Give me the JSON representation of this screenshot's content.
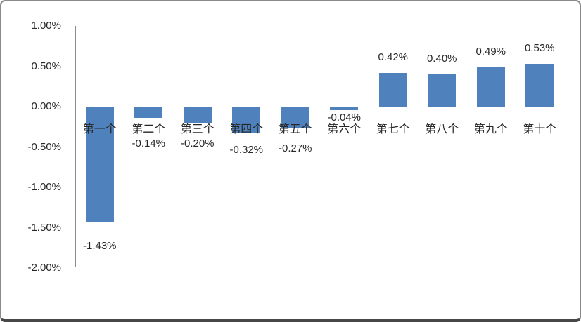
{
  "chart_data": {
    "type": "bar",
    "title": "",
    "xlabel": "",
    "ylabel": "",
    "categories": [
      "第一个",
      "第二个",
      "第三个",
      "第四个",
      "第五个",
      "第六个",
      "第七个",
      "第八个",
      "第九个",
      "第十个"
    ],
    "values": [
      -1.43,
      -0.14,
      -0.2,
      -0.32,
      -0.27,
      -0.04,
      0.42,
      0.4,
      0.49,
      0.53
    ],
    "data_labels": [
      "-1.43%",
      "-0.14%",
      "-0.20%",
      "-0.32%",
      "-0.27%",
      "-0.04%",
      "0.42%",
      "0.40%",
      "0.49%",
      "0.53%"
    ],
    "y_ticks": [
      {
        "value": 1.0,
        "label": "1.00%"
      },
      {
        "value": 0.5,
        "label": "0.50%"
      },
      {
        "value": 0.0,
        "label": "0.00%"
      },
      {
        "value": -0.5,
        "label": "-0.50%"
      },
      {
        "value": -1.0,
        "label": "-1.00%"
      },
      {
        "value": -1.5,
        "label": "-1.50%"
      },
      {
        "value": -2.0,
        "label": "-2.00%"
      }
    ],
    "ylim": [
      -2.0,
      1.0
    ],
    "unit": "%",
    "grid": false,
    "legend": null,
    "colors": {
      "bar_fill": "#4f81bd",
      "axis_line": "#8c8c8c",
      "text": "#262626",
      "frame_border": "#8a8a8a",
      "background": "#ffffff"
    }
  }
}
